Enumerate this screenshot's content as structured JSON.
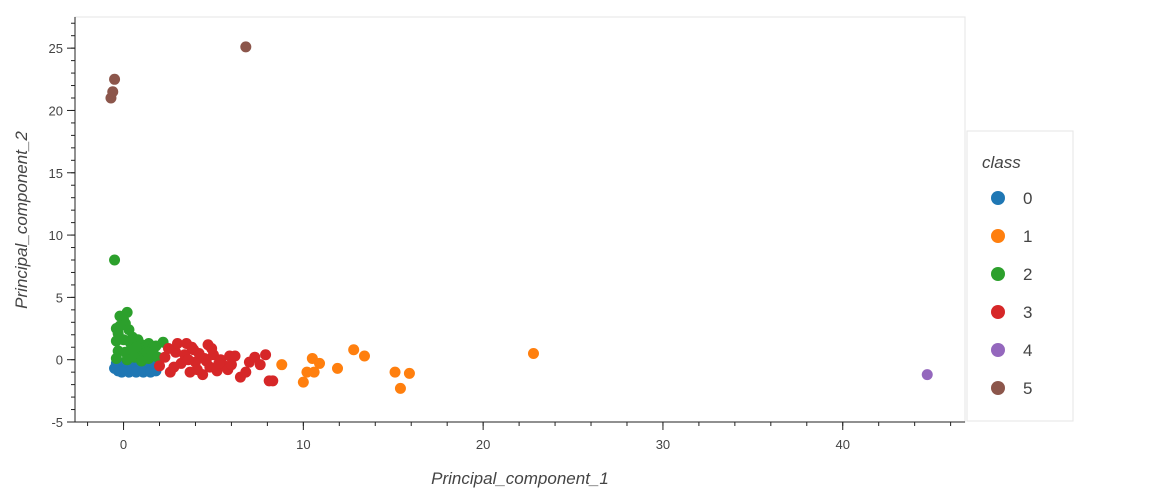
{
  "chart_data": {
    "type": "scatter",
    "title": "",
    "xlabel": "Principal_component_1",
    "ylabel": "Principal_component_2",
    "xlim": [
      -2.7,
      46.8
    ],
    "ylim": [
      -5,
      27.5
    ],
    "x_ticks": [
      0,
      10,
      20,
      30,
      40
    ],
    "y_ticks": [
      -5,
      0,
      5,
      10,
      15,
      20,
      25
    ],
    "grid": false,
    "legend": {
      "title": "class",
      "position": "right"
    },
    "series": [
      {
        "name": "0",
        "color": "#1f77b4",
        "points": [
          [
            -0.3,
            -0.9
          ],
          [
            -0.2,
            -0.6
          ],
          [
            0.0,
            -0.8
          ],
          [
            0.2,
            -0.5
          ],
          [
            0.4,
            -0.9
          ],
          [
            0.6,
            -0.7
          ],
          [
            0.8,
            -0.4
          ],
          [
            1.0,
            -0.9
          ],
          [
            1.2,
            -0.6
          ],
          [
            1.4,
            -0.8
          ],
          [
            1.6,
            -0.5
          ],
          [
            1.8,
            -0.9
          ],
          [
            -0.4,
            -0.3
          ],
          [
            0.1,
            -0.2
          ],
          [
            0.5,
            -0.3
          ],
          [
            0.9,
            -0.2
          ],
          [
            1.3,
            -0.3
          ],
          [
            0.3,
            -1.0
          ],
          [
            0.7,
            -1.0
          ],
          [
            1.1,
            -1.0
          ],
          [
            1.5,
            -1.0
          ],
          [
            -0.1,
            -1.0
          ],
          [
            1.7,
            -0.3
          ],
          [
            -0.5,
            -0.7
          ]
        ]
      },
      {
        "name": "1",
        "color": "#ff7f0e",
        "points": [
          [
            8.8,
            -0.4
          ],
          [
            10.0,
            -1.8
          ],
          [
            10.2,
            -1.0
          ],
          [
            10.5,
            0.1
          ],
          [
            10.6,
            -1.0
          ],
          [
            10.9,
            -0.3
          ],
          [
            11.9,
            -0.7
          ],
          [
            12.8,
            0.8
          ],
          [
            13.4,
            0.3
          ],
          [
            15.1,
            -1.0
          ],
          [
            15.4,
            -2.3
          ],
          [
            15.9,
            -1.1
          ],
          [
            22.8,
            0.5
          ]
        ]
      },
      {
        "name": "2",
        "color": "#2ca02c",
        "points": [
          [
            -0.5,
            8.0
          ],
          [
            0.2,
            3.8
          ],
          [
            -0.2,
            3.5
          ],
          [
            0.0,
            3.2
          ],
          [
            -0.4,
            2.5
          ],
          [
            0.1,
            2.9
          ],
          [
            -0.3,
            2.1
          ],
          [
            0.3,
            2.4
          ],
          [
            0.5,
            1.8
          ],
          [
            -0.4,
            1.5
          ],
          [
            0.0,
            1.6
          ],
          [
            0.4,
            1.3
          ],
          [
            0.8,
            1.6
          ],
          [
            1.0,
            1.2
          ],
          [
            1.2,
            1.0
          ],
          [
            1.4,
            1.3
          ],
          [
            1.6,
            0.9
          ],
          [
            1.8,
            1.1
          ],
          [
            2.2,
            1.4
          ],
          [
            -0.3,
            0.7
          ],
          [
            0.1,
            0.6
          ],
          [
            0.5,
            0.8
          ],
          [
            0.9,
            0.5
          ],
          [
            1.3,
            0.6
          ],
          [
            1.7,
            0.4
          ],
          [
            -0.4,
            0.1
          ],
          [
            0.2,
            0.0
          ],
          [
            0.6,
            0.2
          ],
          [
            1.0,
            -0.1
          ],
          [
            1.4,
            0.1
          ],
          [
            1.9,
            0.2
          ],
          [
            -0.2,
            2.7
          ],
          [
            0.7,
            1.0
          ]
        ]
      },
      {
        "name": "3",
        "color": "#d62728",
        "points": [
          [
            2.0,
            -0.5
          ],
          [
            2.3,
            0.2
          ],
          [
            2.6,
            -1.0
          ],
          [
            2.9,
            0.6
          ],
          [
            3.0,
            1.3
          ],
          [
            3.2,
            -0.3
          ],
          [
            3.4,
            0.4
          ],
          [
            3.5,
            1.3
          ],
          [
            3.7,
            -1.0
          ],
          [
            3.9,
            0.8
          ],
          [
            4.0,
            -0.2
          ],
          [
            4.2,
            0.5
          ],
          [
            4.4,
            -1.2
          ],
          [
            4.5,
            0.1
          ],
          [
            4.7,
            1.2
          ],
          [
            4.8,
            -0.6
          ],
          [
            5.0,
            0.4
          ],
          [
            5.2,
            -0.9
          ],
          [
            5.4,
            0.0
          ],
          [
            5.6,
            -0.5
          ],
          [
            5.9,
            0.3
          ],
          [
            6.2,
            0.3
          ],
          [
            6.5,
            -1.4
          ],
          [
            6.8,
            -1.0
          ],
          [
            7.0,
            -0.2
          ],
          [
            7.3,
            0.2
          ],
          [
            7.6,
            -0.4
          ],
          [
            7.9,
            0.4
          ],
          [
            8.1,
            -1.7
          ],
          [
            8.3,
            -1.7
          ],
          [
            2.5,
            0.9
          ],
          [
            3.6,
            0.0
          ],
          [
            4.1,
            -0.8
          ],
          [
            4.9,
            0.9
          ],
          [
            5.3,
            -0.3
          ],
          [
            2.8,
            -0.6
          ],
          [
            3.8,
            1.0
          ],
          [
            4.6,
            -0.1
          ],
          [
            5.8,
            -0.8
          ],
          [
            6.0,
            -0.4
          ]
        ]
      },
      {
        "name": "4",
        "color": "#9467bd",
        "points": [
          [
            44.7,
            -1.2
          ]
        ]
      },
      {
        "name": "5",
        "color": "#8c564b",
        "points": [
          [
            -0.7,
            21.0
          ],
          [
            -0.6,
            21.5
          ],
          [
            -0.5,
            22.5
          ],
          [
            6.8,
            25.1
          ]
        ]
      }
    ]
  }
}
